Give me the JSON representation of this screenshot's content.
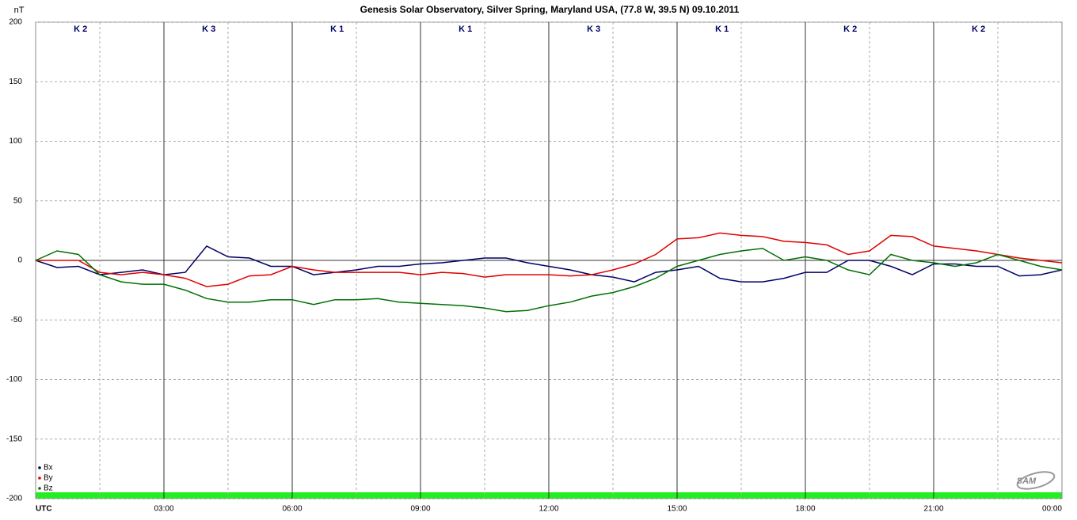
{
  "chart_data": {
    "type": "line",
    "title": "Genesis Solar Observatory, Silver Spring, Maryland USA, (77.8 W, 39.5 N)  09.10.2011",
    "y_label": "nT",
    "logo": "SAM",
    "annotations": [
      "K 2",
      "K 3",
      "K 1",
      "K 1",
      "K 3",
      "K 1",
      "K 2",
      "K 2"
    ],
    "x": [
      0,
      0.5,
      1,
      1.5,
      2,
      2.5,
      3,
      3.5,
      4,
      4.5,
      5,
      5.5,
      6,
      6.5,
      7,
      7.5,
      8,
      8.5,
      9,
      9.5,
      10,
      10.5,
      11,
      11.5,
      12,
      12.5,
      13,
      13.5,
      14,
      14.5,
      15,
      15.5,
      16,
      16.5,
      17,
      17.5,
      18,
      18.5,
      19,
      19.5,
      20,
      20.5,
      21,
      21.5,
      22,
      22.5,
      23,
      23.5,
      24
    ],
    "series": [
      {
        "name": "Bx",
        "color": "#000066",
        "values": [
          0,
          -6,
          -5,
          -12,
          -10,
          -8,
          -12,
          -10,
          12,
          3,
          2,
          -5,
          -5,
          -12,
          -10,
          -8,
          -5,
          -5,
          -3,
          -2,
          0,
          2,
          2,
          -2,
          -5,
          -8,
          -12,
          -14,
          -18,
          -10,
          -8,
          -5,
          -15,
          -18,
          -18,
          -15,
          -10,
          -10,
          0,
          0,
          -5,
          -12,
          -3,
          -3,
          -5,
          -5,
          -13,
          -12,
          -8
        ]
      },
      {
        "name": "By",
        "color": "#e00000",
        "values": [
          0,
          0,
          0,
          -10,
          -12,
          -10,
          -12,
          -15,
          -22,
          -20,
          -13,
          -12,
          -5,
          -8,
          -10,
          -10,
          -10,
          -10,
          -12,
          -10,
          -11,
          -14,
          -12,
          -12,
          -12,
          -13,
          -12,
          -8,
          -3,
          5,
          18,
          19,
          23,
          21,
          20,
          16,
          15,
          13,
          5,
          8,
          21,
          20,
          12,
          10,
          8,
          5,
          2,
          0,
          -2
        ]
      },
      {
        "name": "Bz",
        "color": "#007000",
        "values": [
          0,
          8,
          5,
          -12,
          -18,
          -20,
          -20,
          -25,
          -32,
          -35,
          -35,
          -33,
          -33,
          -37,
          -33,
          -33,
          -32,
          -35,
          -36,
          -37,
          -38,
          -40,
          -43,
          -42,
          -38,
          -35,
          -30,
          -27,
          -22,
          -15,
          -5,
          0,
          5,
          8,
          10,
          0,
          3,
          0,
          -8,
          -12,
          5,
          0,
          -2,
          -5,
          -2,
          5,
          0,
          -5,
          -8
        ]
      }
    ],
    "xlim": [
      0,
      24
    ],
    "xticks": [
      {
        "value": 0,
        "label": "UTC"
      },
      {
        "value": 3,
        "label": "03:00"
      },
      {
        "value": 6,
        "label": "06:00"
      },
      {
        "value": 9,
        "label": "09:00"
      },
      {
        "value": 12,
        "label": "12:00"
      },
      {
        "value": 15,
        "label": "15:00"
      },
      {
        "value": 18,
        "label": "18:00"
      },
      {
        "value": 21,
        "label": "21:00"
      },
      {
        "value": 24,
        "label": "00:00"
      }
    ],
    "ylim": [
      -200,
      200
    ],
    "yticks": [
      -200,
      -150,
      -100,
      -50,
      0,
      50,
      100,
      150,
      200
    ],
    "grid": true,
    "legend": "lower left"
  }
}
